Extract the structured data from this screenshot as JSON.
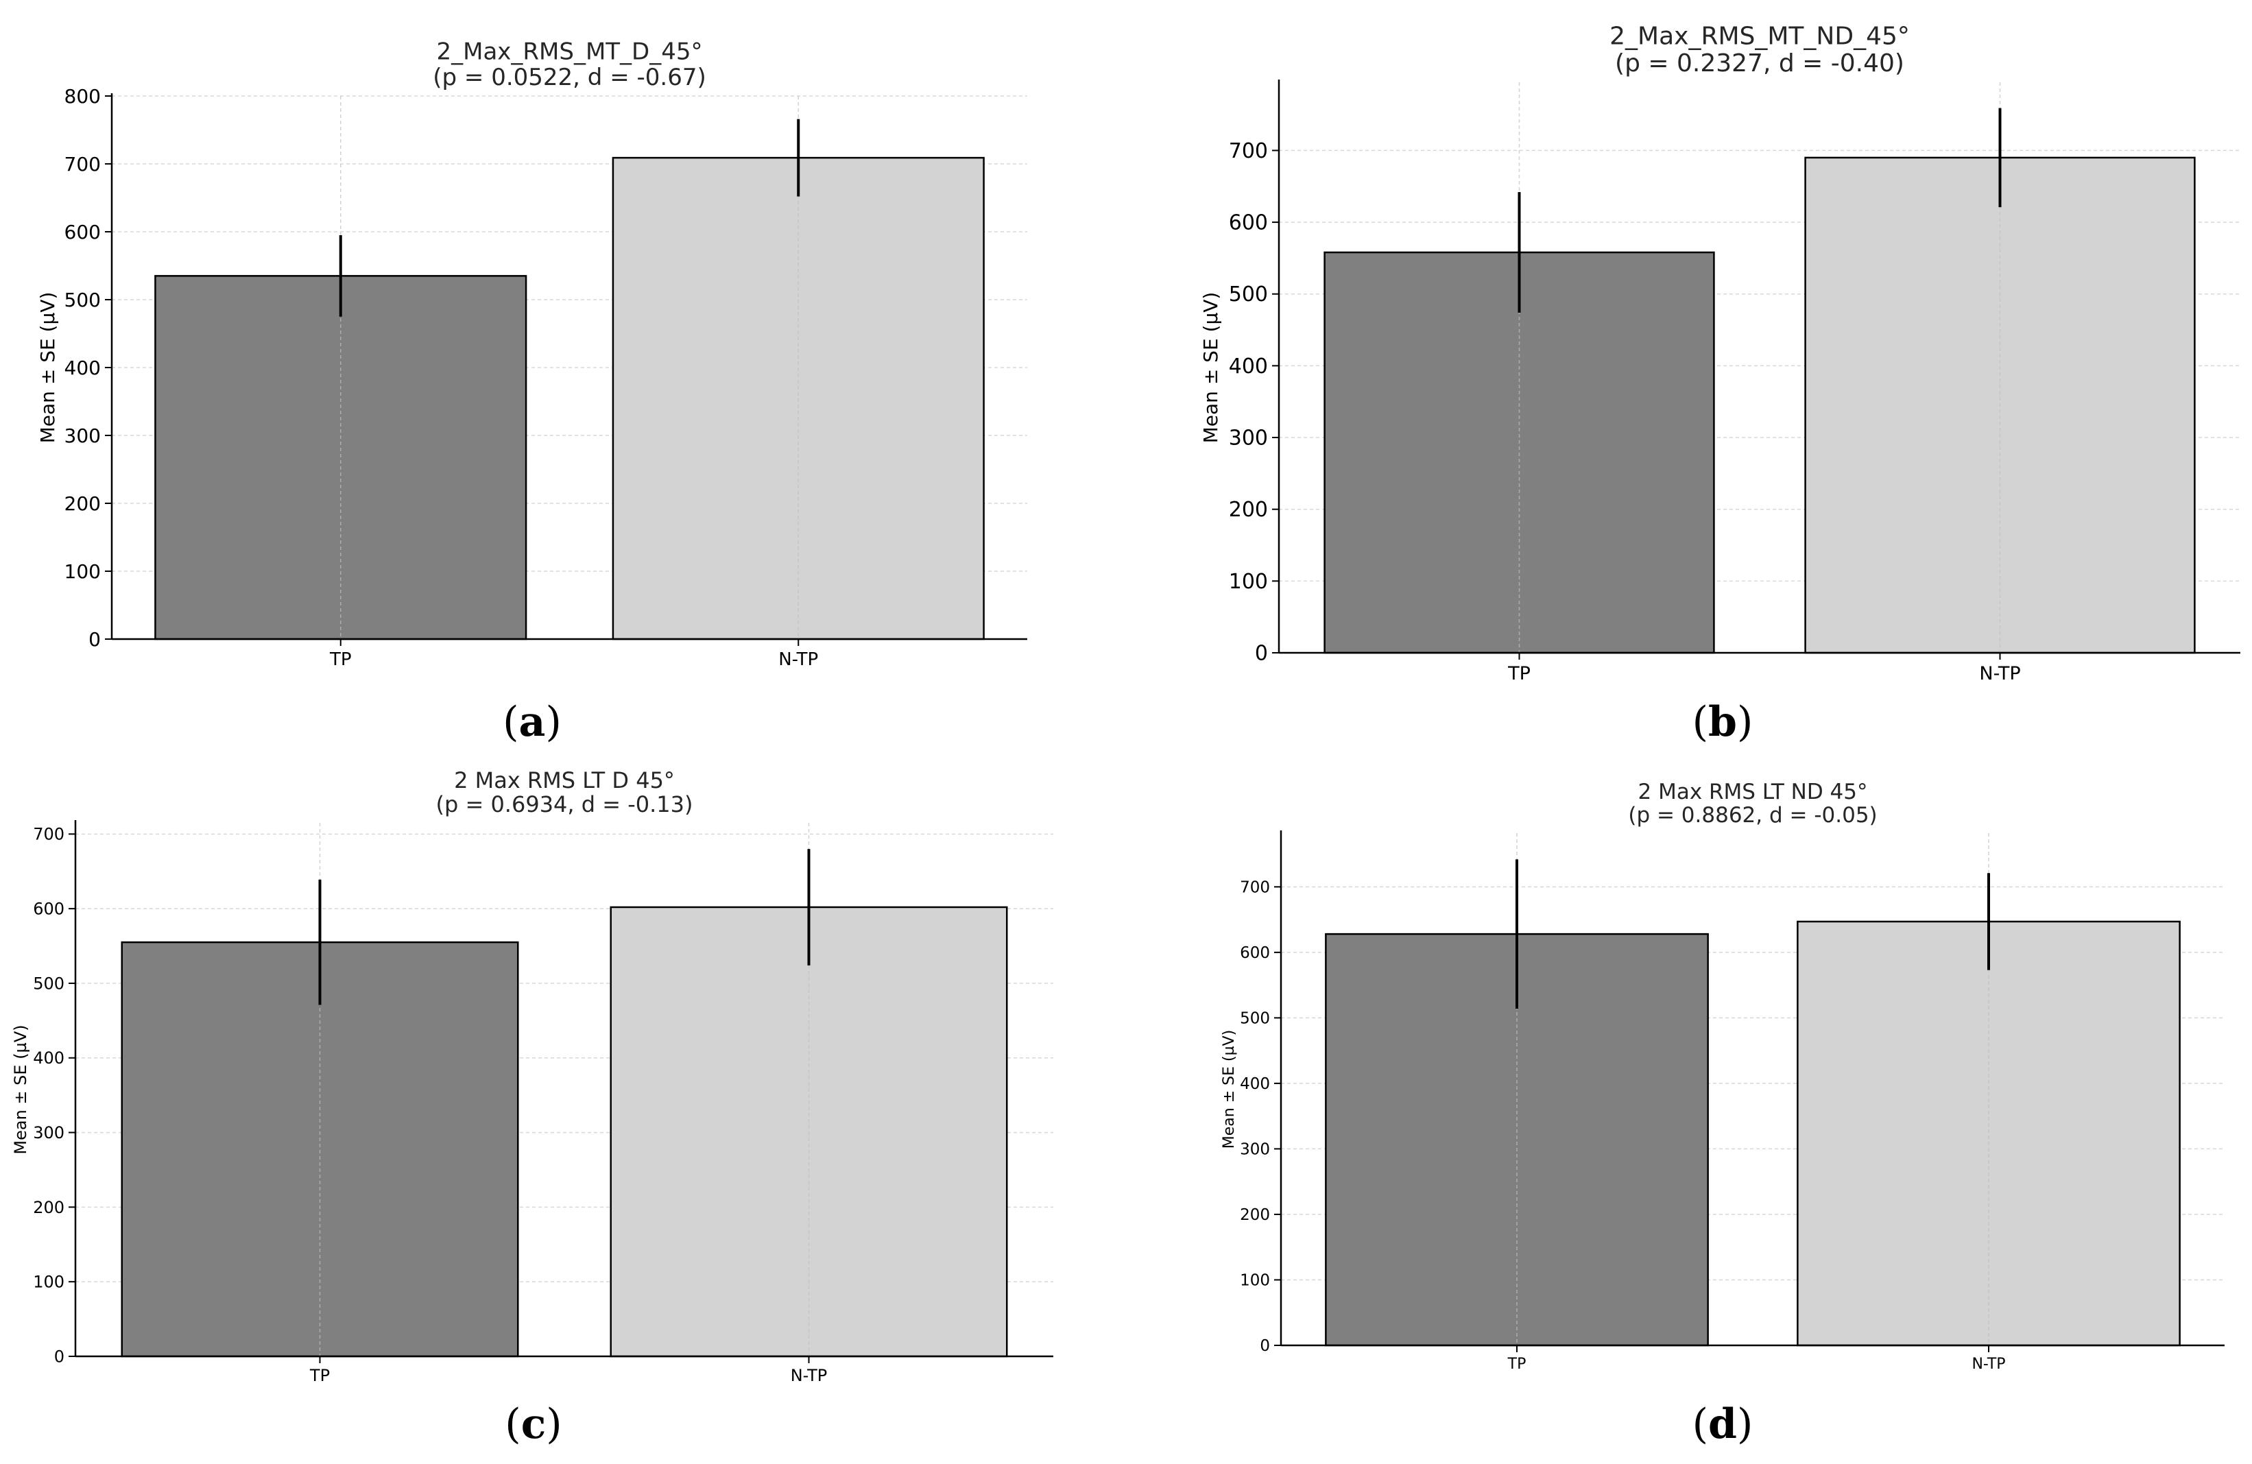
{
  "panels": [
    {
      "caption_letter": "a",
      "chart_data": {
        "type": "bar",
        "title": "2_Max_RMS_MT_D_45°",
        "subtitle": "(p = 0.0522, d = -0.67)",
        "categories": [
          "TP",
          "N-TP"
        ],
        "values": [
          535,
          709
        ],
        "errors": [
          60,
          57
        ],
        "colors": [
          "#808080",
          "#d3d3d3"
        ],
        "xlabel": "",
        "ylabel": "Mean ± SE (µV)",
        "ylim": [
          0,
          800
        ],
        "yticks": [
          0,
          100,
          200,
          300,
          400,
          500,
          600,
          700,
          800
        ],
        "grid": true
      }
    },
    {
      "caption_letter": "b",
      "chart_data": {
        "type": "bar",
        "title": "2_Max_RMS_MT_ND_45°",
        "subtitle": "(p = 0.2327, d = -0.40)",
        "categories": [
          "TP",
          "N-TP"
        ],
        "values": [
          558,
          690
        ],
        "errors": [
          84,
          69
        ],
        "colors": [
          "#808080",
          "#d3d3d3"
        ],
        "xlabel": "",
        "ylabel": "Mean ± SE (µV)",
        "ylim": [
          0,
          795
        ],
        "yticks": [
          0,
          100,
          200,
          300,
          400,
          500,
          600,
          700
        ],
        "grid": true
      }
    },
    {
      "caption_letter": "c",
      "chart_data": {
        "type": "bar",
        "title": "2 Max RMS LT D 45°",
        "subtitle": "(p = 0.6934, d = -0.13)",
        "categories": [
          "TP",
          "N-TP"
        ],
        "values": [
          555,
          602
        ],
        "errors": [
          84,
          78
        ],
        "colors": [
          "#808080",
          "#d3d3d3"
        ],
        "xlabel": "",
        "ylabel": "Mean ± SE (µV)",
        "ylim": [
          0,
          715
        ],
        "yticks": [
          0,
          100,
          200,
          300,
          400,
          500,
          600,
          700
        ],
        "grid": true
      }
    },
    {
      "caption_letter": "d",
      "chart_data": {
        "type": "bar",
        "title": "2 Max RMS LT ND 45°",
        "subtitle": "(p = 0.8862, d = -0.05)",
        "categories": [
          "TP",
          "N-TP"
        ],
        "values": [
          628,
          647
        ],
        "errors": [
          114,
          74
        ],
        "colors": [
          "#808080",
          "#d3d3d3"
        ],
        "xlabel": "",
        "ylabel": "Mean ± SE (µV)",
        "ylim": [
          0,
          782
        ],
        "yticks": [
          0,
          100,
          200,
          300,
          400,
          500,
          600,
          700
        ],
        "grid": true
      }
    }
  ]
}
